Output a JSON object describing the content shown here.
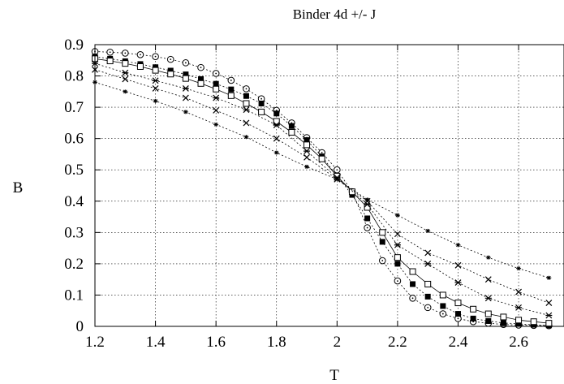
{
  "chart_data": {
    "type": "line",
    "title": "Binder 4d +/- J",
    "xlabel": "T",
    "ylabel": "B",
    "xlim": [
      1.2,
      2.75
    ],
    "ylim": [
      0,
      0.9
    ],
    "x_ticks": [
      "1.2",
      "1.4",
      "1.6",
      "1.8",
      "2",
      "2.2",
      "2.4",
      "2.6"
    ],
    "y_ticks": [
      "0",
      "0.1",
      "0.2",
      "0.3",
      "0.4",
      "0.5",
      "0.6",
      "0.7",
      "0.8",
      "0.9"
    ],
    "grid": true,
    "legend": "none",
    "series": [
      {
        "marker": "circle-dot",
        "line": "dotted",
        "x": [
          1.2,
          1.25,
          1.3,
          1.35,
          1.4,
          1.45,
          1.5,
          1.55,
          1.6,
          1.65,
          1.7,
          1.75,
          1.8,
          1.85,
          1.9,
          1.95,
          2.0,
          2.05,
          2.1,
          2.15,
          2.2,
          2.25,
          2.3,
          2.35,
          2.4,
          2.45,
          2.5,
          2.55,
          2.6,
          2.65,
          2.7
        ],
        "y": [
          0.878,
          0.876,
          0.873,
          0.868,
          0.862,
          0.853,
          0.842,
          0.827,
          0.808,
          0.786,
          0.759,
          0.727,
          0.69,
          0.65,
          0.603,
          0.555,
          0.5,
          0.43,
          0.315,
          0.21,
          0.145,
          0.09,
          0.06,
          0.04,
          0.025,
          0.015,
          0.01,
          0.006,
          0.004,
          0.003,
          0.002
        ]
      },
      {
        "marker": "filled-square",
        "line": "dotted",
        "x": [
          1.2,
          1.25,
          1.3,
          1.35,
          1.4,
          1.45,
          1.5,
          1.55,
          1.6,
          1.65,
          1.7,
          1.75,
          1.8,
          1.85,
          1.9,
          1.95,
          2.0,
          2.05,
          2.1,
          2.15,
          2.2,
          2.25,
          2.3,
          2.35,
          2.4,
          2.45,
          2.5,
          2.55,
          2.6,
          2.65,
          2.7
        ],
        "y": [
          0.862,
          0.855,
          0.847,
          0.838,
          0.828,
          0.817,
          0.805,
          0.79,
          0.775,
          0.757,
          0.736,
          0.712,
          0.68,
          0.64,
          0.595,
          0.543,
          0.48,
          0.42,
          0.345,
          0.27,
          0.2,
          0.135,
          0.095,
          0.065,
          0.04,
          0.025,
          0.017,
          0.011,
          0.008,
          0.005,
          0.003
        ]
      },
      {
        "marker": "open-square",
        "line": "solid",
        "x": [
          1.2,
          1.25,
          1.3,
          1.35,
          1.4,
          1.45,
          1.5,
          1.55,
          1.6,
          1.65,
          1.7,
          1.75,
          1.8,
          1.85,
          1.9,
          1.95,
          2.0,
          2.05,
          2.1,
          2.15,
          2.2,
          2.25,
          2.3,
          2.35,
          2.4,
          2.45,
          2.5,
          2.55,
          2.6,
          2.65,
          2.7
        ],
        "y": [
          0.855,
          0.848,
          0.84,
          0.83,
          0.818,
          0.806,
          0.792,
          0.776,
          0.758,
          0.737,
          0.712,
          0.685,
          0.655,
          0.62,
          0.58,
          0.535,
          0.48,
          0.43,
          0.38,
          0.3,
          0.22,
          0.175,
          0.135,
          0.1,
          0.075,
          0.055,
          0.04,
          0.03,
          0.02,
          0.015,
          0.01
        ]
      },
      {
        "marker": "asterisk",
        "line": "dotted",
        "x": [
          1.2,
          1.3,
          1.4,
          1.5,
          1.6,
          1.7,
          1.8,
          1.9,
          2.0,
          2.1,
          2.2,
          2.3,
          2.4,
          2.5,
          2.6,
          2.7
        ],
        "y": [
          0.84,
          0.81,
          0.785,
          0.76,
          0.73,
          0.692,
          0.643,
          0.56,
          0.475,
          0.39,
          0.26,
          0.2,
          0.14,
          0.09,
          0.06,
          0.035
        ]
      },
      {
        "marker": "cross",
        "line": "dotted",
        "x": [
          1.2,
          1.3,
          1.4,
          1.5,
          1.6,
          1.7,
          1.8,
          1.9,
          2.0,
          2.1,
          2.2,
          2.3,
          2.4,
          2.5,
          2.6,
          2.7
        ],
        "y": [
          0.82,
          0.79,
          0.76,
          0.73,
          0.69,
          0.65,
          0.6,
          0.54,
          0.47,
          0.4,
          0.295,
          0.235,
          0.195,
          0.15,
          0.11,
          0.075
        ]
      },
      {
        "marker": "star",
        "line": "dotted",
        "x": [
          1.2,
          1.3,
          1.4,
          1.5,
          1.6,
          1.7,
          1.8,
          1.9,
          2.0,
          2.1,
          2.2,
          2.3,
          2.4,
          2.5,
          2.6,
          2.7
        ],
        "y": [
          0.78,
          0.75,
          0.72,
          0.685,
          0.645,
          0.605,
          0.555,
          0.51,
          0.47,
          0.405,
          0.355,
          0.305,
          0.26,
          0.22,
          0.185,
          0.155
        ]
      }
    ]
  }
}
